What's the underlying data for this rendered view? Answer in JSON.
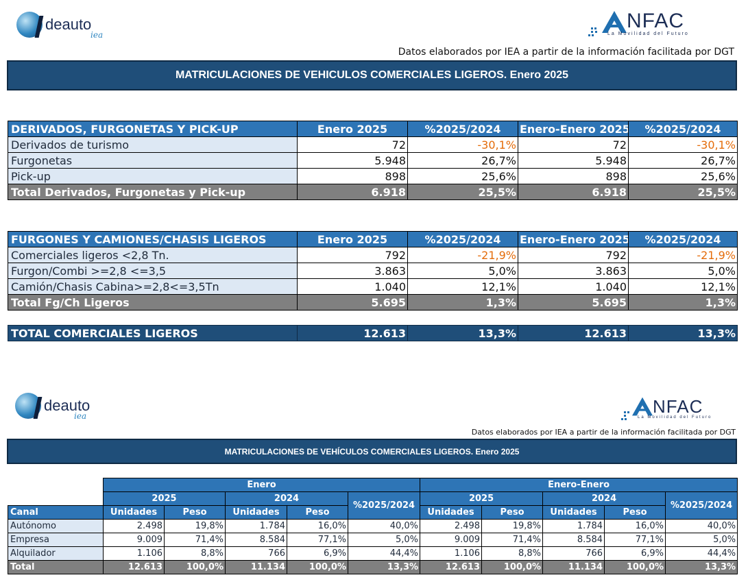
{
  "logos": {
    "ideauto": {
      "text": "deauto",
      "sub": "iea"
    },
    "anfac": {
      "text": "NFAC",
      "tagline": "La Movilidad del Futuro"
    }
  },
  "top": {
    "source_note": "Datos elaborados por IEA a partir de la información facilitada por DGT",
    "title": "MATRICULACIONES DE VEHICULOS COMERCIALES LIGEROS. Enero 2025"
  },
  "table_a": {
    "headers": [
      "DERIVADOS, FURGONETAS Y PICK-UP",
      "Enero 2025",
      "%2025/2024",
      "Enero-Enero 2025",
      "%2025/2024"
    ],
    "rows": [
      [
        "Derivados de turismo",
        "72",
        "-30,1%",
        "72",
        "-30,1%"
      ],
      [
        "Furgonetas",
        "5.948",
        "26,7%",
        "5.948",
        "26,7%"
      ],
      [
        "Pick-up",
        "898",
        "25,6%",
        "898",
        "25,6%"
      ]
    ],
    "total": [
      "Total Derivados, Furgonetas y Pick-up",
      "6.918",
      "25,5%",
      "6.918",
      "25,5%"
    ]
  },
  "table_b": {
    "headers": [
      "FURGONES Y CAMIONES/CHASIS LIGEROS",
      "Enero 2025",
      "%2025/2024",
      "Enero-Enero 2025",
      "%2025/2024"
    ],
    "rows": [
      [
        "Comerciales ligeros <2,8 Tn.",
        "792",
        "-21,9%",
        "792",
        "-21,9%"
      ],
      [
        "Furgon/Combi >=2,8 <=3,5",
        "3.863",
        "5,0%",
        "3.863",
        "5,0%"
      ],
      [
        "Camión/Chasis Cabina>=2,8<=3,5Tn",
        "1.040",
        "12,1%",
        "1.040",
        "12,1%"
      ]
    ],
    "total": [
      "Total Fg/Ch Ligeros",
      "5.695",
      "1,3%",
      "5.695",
      "1,3%"
    ]
  },
  "grand_total": [
    "TOTAL COMERCIALES LIGEROS",
    "12.613",
    "13,3%",
    "12.613",
    "13,3%"
  ],
  "bottom": {
    "source_note": "Datos elaborados por IEA a partir de la información facilitada por DGT",
    "title": "MATRICULACIONES DE VEHÍCULOS COMERCIALES LIGEROS. Enero 2025"
  },
  "table_c": {
    "group_enero": "Enero",
    "group_enero_enero": "Enero-Enero",
    "year_2025": "2025",
    "year_2024": "2024",
    "pct": "%2025/2024",
    "canal": "Canal",
    "unidades": "Unidades",
    "peso": "Peso",
    "rows": [
      [
        "Autónomo",
        "2.498",
        "19,8%",
        "1.784",
        "16,0%",
        "40,0%",
        "2.498",
        "19,8%",
        "1.784",
        "16,0%",
        "40,0%"
      ],
      [
        "Empresa",
        "9.009",
        "71,4%",
        "8.584",
        "77,1%",
        "5,0%",
        "9.009",
        "71,4%",
        "8.584",
        "77,1%",
        "5,0%"
      ],
      [
        "Alquilador",
        "1.106",
        "8,8%",
        "766",
        "6,9%",
        "44,4%",
        "1.106",
        "8,8%",
        "766",
        "6,9%",
        "44,4%"
      ]
    ],
    "total": [
      "Total",
      "12.613",
      "100,0%",
      "11.134",
      "100,0%",
      "13,3%",
      "12.613",
      "100,0%",
      "11.134",
      "100,0%",
      "13,3%"
    ]
  },
  "colors": {
    "header_blue": "#2e75b6",
    "banner_navy": "#1f4e79",
    "label_bg": "#dde8f4",
    "total_gray": "#808080",
    "negative": "#e46c0a"
  }
}
